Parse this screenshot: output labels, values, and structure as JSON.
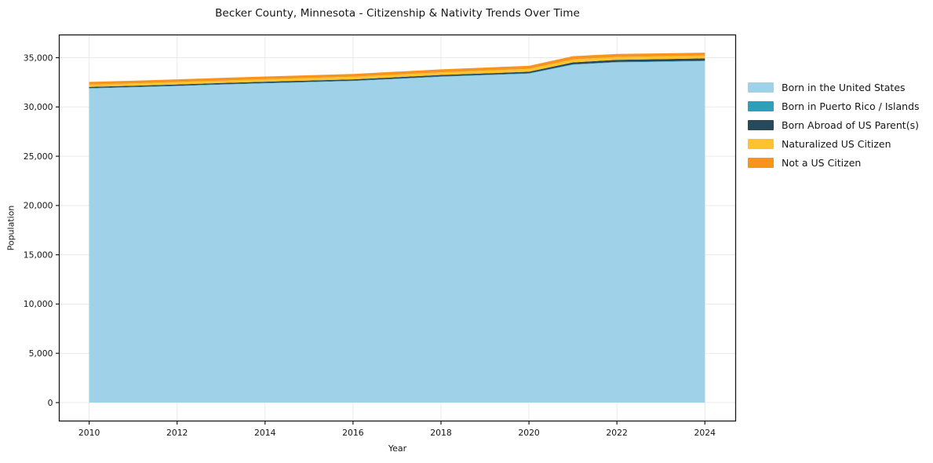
{
  "chart_data": {
    "type": "area",
    "stacked": true,
    "title": "Becker County, Minnesota - Citizenship & Nativity Trends Over Time",
    "xlabel": "Year",
    "ylabel": "Population",
    "grid": true,
    "legend_position": "right",
    "x": [
      2010,
      2011,
      2012,
      2013,
      2014,
      2015,
      2016,
      2017,
      2018,
      2019,
      2020,
      2021,
      2022,
      2023,
      2024
    ],
    "series": [
      {
        "name": "Born in the United States",
        "color": "#9fd2e8",
        "values": [
          31880,
          31990,
          32120,
          32260,
          32390,
          32510,
          32630,
          32840,
          33060,
          33220,
          33380,
          34280,
          34520,
          34580,
          34650
        ]
      },
      {
        "name": "Born in Puerto Rico / Islands",
        "color": "#2f9fb8",
        "values": [
          40,
          40,
          40,
          40,
          40,
          40,
          40,
          45,
          45,
          45,
          45,
          50,
          50,
          50,
          50
        ]
      },
      {
        "name": "Born Abroad of US Parent(s)",
        "color": "#28495c",
        "values": [
          120,
          120,
          125,
          125,
          130,
          130,
          135,
          135,
          140,
          145,
          150,
          190,
          210,
          220,
          230
        ]
      },
      {
        "name": "Naturalized US Citizen",
        "color": "#fcc32f",
        "values": [
          240,
          245,
          250,
          250,
          255,
          260,
          265,
          270,
          275,
          280,
          285,
          300,
          295,
          290,
          285
        ]
      },
      {
        "name": "Not a US Citizen",
        "color": "#f7941e",
        "values": [
          260,
          265,
          265,
          270,
          275,
          280,
          285,
          290,
          295,
          305,
          315,
          330,
          310,
          300,
          295
        ]
      }
    ],
    "xlim": [
      2009.32,
      2024.7
    ],
    "ylim": [
      -1870,
      37310
    ],
    "x_ticks": [
      {
        "v": 2010,
        "label": "2010"
      },
      {
        "v": 2012,
        "label": "2012"
      },
      {
        "v": 2014,
        "label": "2014"
      },
      {
        "v": 2016,
        "label": "2016"
      },
      {
        "v": 2018,
        "label": "2018"
      },
      {
        "v": 2020,
        "label": "2020"
      },
      {
        "v": 2022,
        "label": "2022"
      },
      {
        "v": 2024,
        "label": "2024"
      }
    ],
    "y_ticks": [
      {
        "v": 0,
        "label": "0"
      },
      {
        "v": 5000,
        "label": "5,000"
      },
      {
        "v": 10000,
        "label": "10,000"
      },
      {
        "v": 15000,
        "label": "15,000"
      },
      {
        "v": 20000,
        "label": "20,000"
      },
      {
        "v": 25000,
        "label": "25,000"
      },
      {
        "v": 30000,
        "label": "30,000"
      },
      {
        "v": 35000,
        "label": "35,000"
      }
    ],
    "style": {
      "background": "#ffffff",
      "grid_color": "#e9e9e9",
      "spine_color": "#1a1a1a",
      "tick_color": "#1a1a1a",
      "tick_label_color": "#151515"
    }
  }
}
